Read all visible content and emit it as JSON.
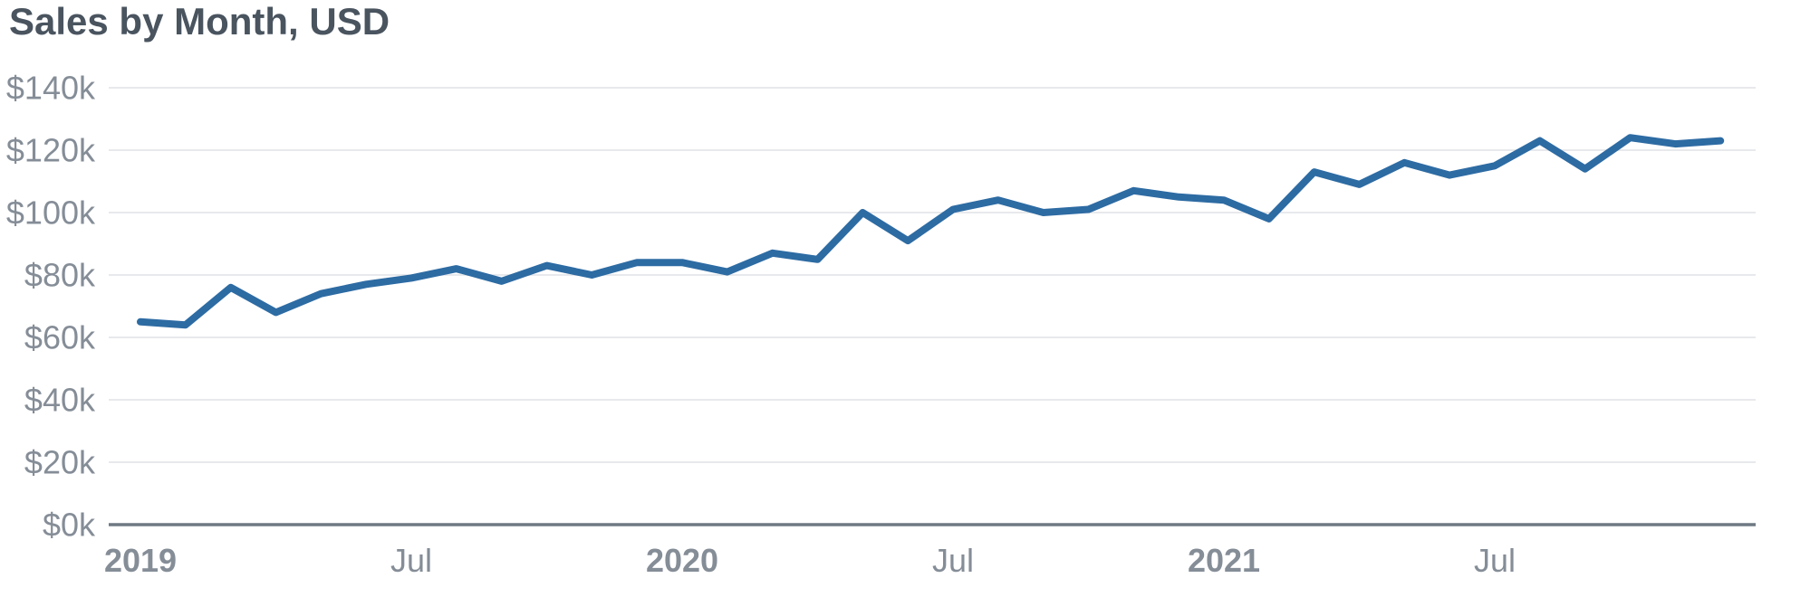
{
  "header": {
    "title": "Sales by Month, USD"
  },
  "chart_data": {
    "type": "line",
    "title": "Sales by Month, USD",
    "series_name": "Sales",
    "unit": "USD, thousands",
    "x": [
      "2019-01",
      "2019-02",
      "2019-03",
      "2019-04",
      "2019-05",
      "2019-06",
      "2019-07",
      "2019-08",
      "2019-09",
      "2019-10",
      "2019-11",
      "2019-12",
      "2020-01",
      "2020-02",
      "2020-03",
      "2020-04",
      "2020-05",
      "2020-06",
      "2020-07",
      "2020-08",
      "2020-09",
      "2020-10",
      "2020-11",
      "2020-12",
      "2021-01",
      "2021-02",
      "2021-03",
      "2021-04",
      "2021-05",
      "2021-06",
      "2021-07",
      "2021-08",
      "2021-09",
      "2021-10",
      "2021-11",
      "2021-12"
    ],
    "values": [
      65,
      64,
      76,
      68,
      74,
      77,
      79,
      82,
      78,
      83,
      80,
      84,
      84,
      81,
      87,
      85,
      100,
      91,
      101,
      104,
      100,
      101,
      107,
      105,
      104,
      98,
      113,
      109,
      116,
      112,
      115,
      123,
      114,
      124,
      122,
      123
    ],
    "ylim": [
      0,
      140
    ],
    "y_ticks": [
      {
        "value": 0,
        "label": "$0k"
      },
      {
        "value": 20,
        "label": "$20k"
      },
      {
        "value": 40,
        "label": "$40k"
      },
      {
        "value": 60,
        "label": "$60k"
      },
      {
        "value": 80,
        "label": "$80k"
      },
      {
        "value": 100,
        "label": "$100k"
      },
      {
        "value": 120,
        "label": "$120k"
      },
      {
        "value": 140,
        "label": "$140k"
      }
    ],
    "x_ticks": [
      {
        "month_index": 0,
        "label": "2019",
        "bold": true
      },
      {
        "month_index": 6,
        "label": "Jul",
        "bold": false
      },
      {
        "month_index": 12,
        "label": "2020",
        "bold": true
      },
      {
        "month_index": 18,
        "label": "Jul",
        "bold": false
      },
      {
        "month_index": 24,
        "label": "2021",
        "bold": true
      },
      {
        "month_index": 30,
        "label": "Jul",
        "bold": false
      }
    ],
    "grid": true,
    "legend": "none",
    "colors": {
      "line": "#2d6ba3",
      "grid": "#e7e9ec",
      "axis": "#6e7984",
      "tick_label": "#858d97",
      "title": "#49545f"
    }
  }
}
